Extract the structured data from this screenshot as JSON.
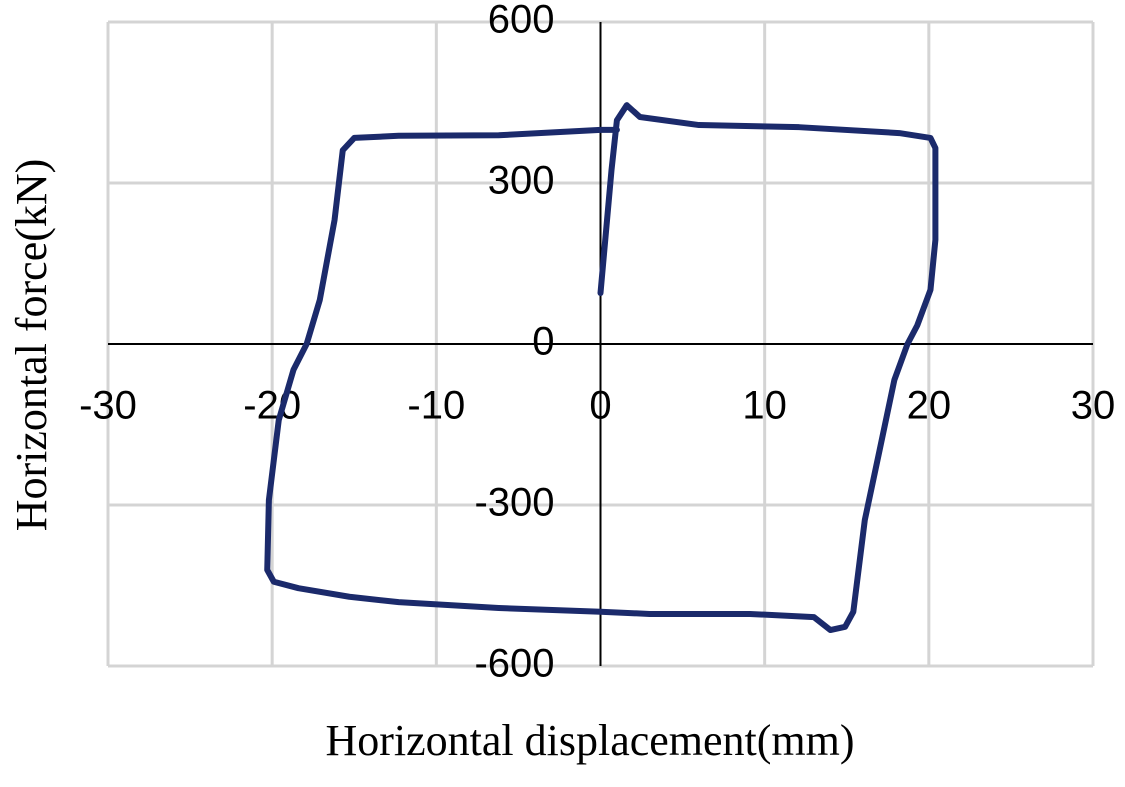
{
  "chart_data": {
    "type": "line",
    "x_label": "Horizontal displacement(mm)",
    "y_label": "Horizontal force(kN)",
    "x": [
      0,
      0.67,
      1.0,
      1.6,
      2.4,
      6,
      12.1,
      18.2,
      20.1,
      20.4,
      20.4,
      20.1,
      19.3,
      18.7,
      17.9,
      17.0,
      16.1,
      15.4,
      14.9,
      14.0,
      13.0,
      9.1,
      3.0,
      0,
      -6.2,
      -12.3,
      -15.3,
      -18.4,
      -19.9,
      -20.3,
      -20.2,
      -19.6,
      -18.7,
      -17.9,
      -17.1,
      -16.2,
      -15.7,
      -15.0,
      -12.3,
      -6.2,
      0,
      1.0
    ],
    "values": [
      95,
      324,
      417,
      445,
      423,
      408,
      404,
      393,
      384,
      365,
      194,
      101,
      35,
      0,
      -67,
      -198,
      -328,
      -499,
      -527,
      -533,
      -509,
      -503,
      -503,
      -499,
      -492,
      -481,
      -471,
      -455,
      -443,
      -421,
      -291,
      -142,
      -48,
      0,
      82,
      231,
      361,
      384,
      388,
      389,
      399,
      399
    ],
    "color": "#1b2a6b",
    "xlim": [
      -30,
      30
    ],
    "xticks": [
      -30,
      -20,
      -10,
      0,
      10,
      20,
      30
    ],
    "ylim": [
      -600,
      600
    ],
    "yticks": [
      -600,
      -300,
      0,
      300,
      600
    ],
    "grid": true
  }
}
